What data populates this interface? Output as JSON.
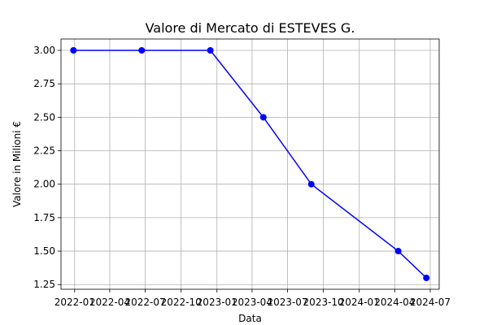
{
  "chart_data": {
    "type": "line",
    "title": "Valore di Mercato di ESTEVES G.",
    "xlabel": "Data",
    "ylabel": "Valore in Milioni €",
    "x_ticks": [
      "2022-01",
      "2022-04",
      "2022-07",
      "2022-10",
      "2023-01",
      "2023-04",
      "2023-07",
      "2023-10",
      "2024-01",
      "2024-04",
      "2024-07"
    ],
    "y_ticks": [
      "1.25",
      "1.50",
      "1.75",
      "2.00",
      "2.25",
      "2.50",
      "2.75",
      "3.00"
    ],
    "xlim": [
      "2021-11-27",
      "2024-07-24"
    ],
    "ylim": [
      1.215,
      3.085
    ],
    "grid": true,
    "series": [
      {
        "color": "#0000ff",
        "marker": "circle",
        "x": [
          "2021-12-29",
          "2022-06-22",
          "2022-12-15",
          "2023-04-30",
          "2023-08-31",
          "2024-04-10",
          "2024-06-21"
        ],
        "y": [
          3.0,
          3.0,
          3.0,
          2.5,
          2.0,
          1.5,
          1.3
        ]
      }
    ]
  }
}
